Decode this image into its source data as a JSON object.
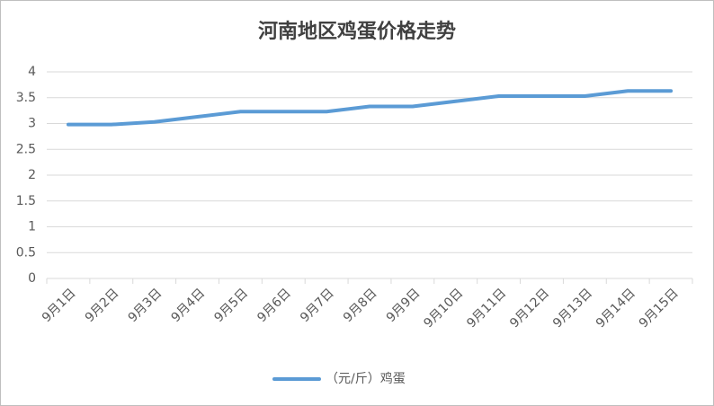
{
  "chart_data": {
    "type": "line",
    "title": "河南地区鸡蛋价格走势",
    "categories": [
      "9月1日",
      "9月2日",
      "9月3日",
      "9月4日",
      "9月5日",
      "9月6日",
      "9月7日",
      "9月8日",
      "9月9日",
      "9月10日",
      "9月11日",
      "9月12日",
      "9月13日",
      "9月14日",
      "9月15日"
    ],
    "series": [
      {
        "name": "（元/斤）鸡蛋",
        "color": "#5b9bd5",
        "values": [
          2.98,
          2.98,
          3.03,
          3.13,
          3.23,
          3.23,
          3.23,
          3.33,
          3.33,
          3.43,
          3.53,
          3.53,
          3.53,
          3.63,
          3.63
        ]
      }
    ],
    "ylim": [
      0,
      4
    ],
    "yticks": [
      0,
      0.5,
      1,
      1.5,
      2,
      2.5,
      3,
      3.5,
      4
    ],
    "grid": true,
    "legend": "bottom"
  }
}
